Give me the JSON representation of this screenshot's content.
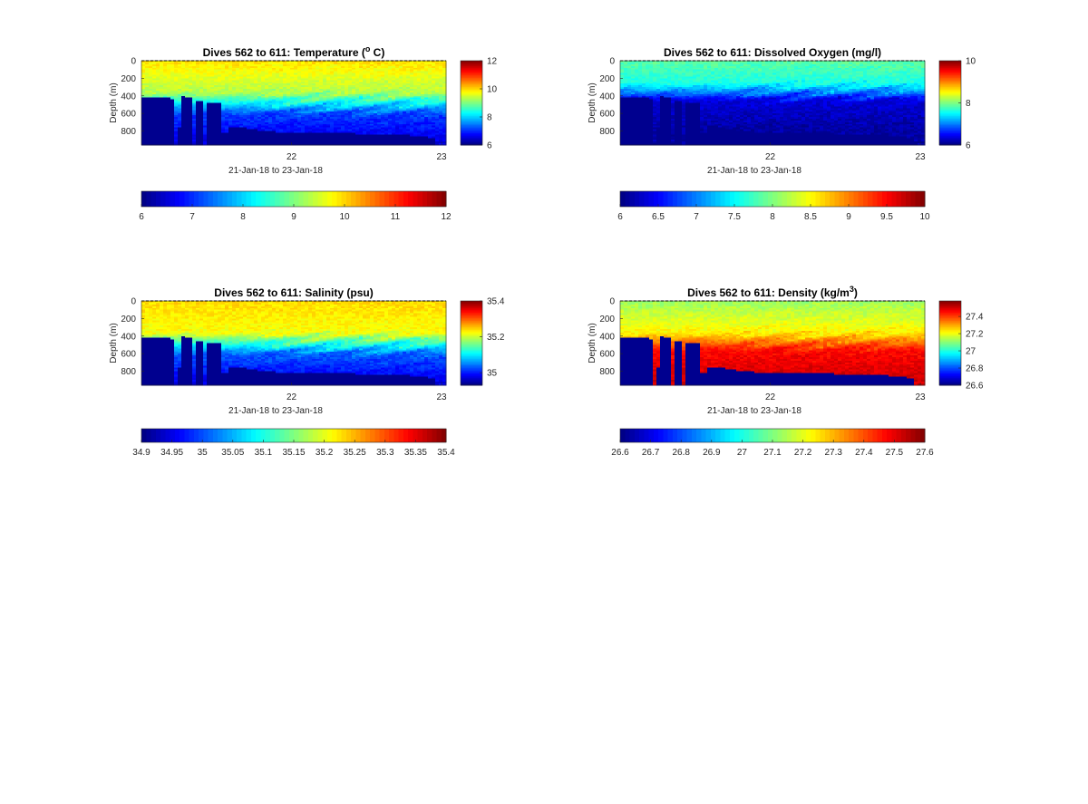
{
  "figure": {
    "background": "#ffffff",
    "colormap": "jet",
    "bathymetry_color": "#00008f"
  },
  "chart_data": [
    {
      "id": "temperature",
      "type": "heatmap",
      "title_text": "Dives 562 to 611: Temperature (",
      "title_sup": "o",
      "title_tail": " C)",
      "xlabel": "21-Jan-18 to 23-Jan-18",
      "ylabel": "Depth (m)",
      "x_ticks": [
        "22",
        "23"
      ],
      "x_tick_values": [
        22,
        23
      ],
      "xlim": [
        21.0,
        23.03
      ],
      "y_ticks": [
        "0",
        "200",
        "400",
        "600",
        "800"
      ],
      "y_tick_values": [
        0,
        200,
        400,
        600,
        800
      ],
      "ylim": [
        960,
        0
      ],
      "clim": [
        6,
        12
      ],
      "colorbar_side_ticks": [
        "6",
        "8",
        "10",
        "12"
      ],
      "colorbar_side_values": [
        6,
        8,
        10,
        12
      ],
      "colorbar_bottom_ticks": [
        "6",
        "7",
        "8",
        "9",
        "10",
        "11",
        "12"
      ],
      "colorbar_bottom_values": [
        6,
        7,
        8,
        9,
        10,
        11,
        12
      ],
      "profile": {
        "surface_value": 9.9,
        "mid_value": 9.3,
        "deep_value": 7.1,
        "bottom_value": 6.6,
        "thermocline_depth_m": [
          350,
          600
        ],
        "ramp_depth_m": 350
      }
    },
    {
      "id": "oxygen",
      "type": "heatmap",
      "title_text": "Dives 562 to 611: Dissolved Oxygen (mg/l)",
      "title_sup": "",
      "title_tail": "",
      "xlabel": "21-Jan-18 to 23-Jan-18",
      "ylabel": "Depth (m)",
      "x_ticks": [
        "22",
        "23"
      ],
      "x_tick_values": [
        22,
        23
      ],
      "xlim": [
        21.0,
        23.03
      ],
      "y_ticks": [
        "0",
        "200",
        "400",
        "600",
        "800"
      ],
      "y_tick_values": [
        0,
        200,
        400,
        600,
        800
      ],
      "ylim": [
        960,
        0
      ],
      "clim": [
        6,
        10
      ],
      "colorbar_side_ticks": [
        "6",
        "8",
        "10"
      ],
      "colorbar_side_values": [
        6,
        8,
        10
      ],
      "colorbar_bottom_ticks": [
        "6",
        "6.5",
        "7",
        "7.5",
        "8",
        "8.5",
        "9",
        "9.5",
        "10"
      ],
      "colorbar_bottom_values": [
        6,
        6.5,
        7,
        7.5,
        8,
        8.5,
        9,
        9.5,
        10
      ],
      "profile": {
        "surface_value": 7.85,
        "mid_value": 7.6,
        "deep_value": 6.35,
        "bottom_value": 6.15,
        "thermocline_depth_m": [
          250,
          450
        ],
        "ramp_depth_m": 250
      }
    },
    {
      "id": "salinity",
      "type": "heatmap",
      "title_text": "Dives 562 to 611: Salinity (psu)",
      "title_sup": "",
      "title_tail": "",
      "xlabel": "21-Jan-18 to 23-Jan-18",
      "ylabel": "Depth (m)",
      "x_ticks": [
        "22",
        "23"
      ],
      "x_tick_values": [
        22,
        23
      ],
      "xlim": [
        21.0,
        23.03
      ],
      "y_ticks": [
        "0",
        "200",
        "400",
        "600",
        "800"
      ],
      "y_tick_values": [
        0,
        200,
        400,
        600,
        800
      ],
      "ylim": [
        960,
        0
      ],
      "clim": [
        34.93,
        35.4
      ],
      "colorbar_side_ticks": [
        "35",
        "35.2",
        "35.4"
      ],
      "colorbar_side_values": [
        35,
        35.2,
        35.4
      ],
      "colorbar_bottom_ticks": [
        "34.9",
        "34.95",
        "35",
        "35.05",
        "35.1",
        "35.15",
        "35.2",
        "35.25",
        "35.3",
        "35.35",
        "35.4"
      ],
      "colorbar_bottom_values": [
        34.9,
        34.95,
        35,
        35.05,
        35.1,
        35.15,
        35.2,
        35.25,
        35.3,
        35.35,
        35.4
      ],
      "colorbar_bottom_clim": [
        34.9,
        35.4
      ],
      "profile": {
        "surface_value": 35.24,
        "mid_value": 35.22,
        "deep_value": 35.03,
        "bottom_value": 34.98,
        "thermocline_depth_m": [
          350,
          600
        ],
        "ramp_depth_m": 350
      }
    },
    {
      "id": "density",
      "type": "heatmap",
      "title_text": "Dives 562 to 611: Density (kg/m",
      "title_sup": "3",
      "title_tail": ")",
      "xlabel": "21-Jan-18 to 23-Jan-18",
      "ylabel": "Depth (m)",
      "x_ticks": [
        "22",
        "23"
      ],
      "x_tick_values": [
        22,
        23
      ],
      "xlim": [
        21.0,
        23.03
      ],
      "y_ticks": [
        "0",
        "200",
        "400",
        "600",
        "800"
      ],
      "y_tick_values": [
        0,
        200,
        400,
        600,
        800
      ],
      "ylim": [
        960,
        0
      ],
      "clim": [
        26.6,
        27.58
      ],
      "colorbar_side_ticks": [
        "26.6",
        "26.8",
        "27",
        "27.2",
        "27.4"
      ],
      "colorbar_side_values": [
        26.6,
        26.8,
        27,
        27.2,
        27.4
      ],
      "colorbar_bottom_ticks": [
        "26.6",
        "26.7",
        "26.8",
        "26.9",
        "27",
        "27.1",
        "27.2",
        "27.3",
        "27.4",
        "27.5",
        "27.6"
      ],
      "colorbar_bottom_values": [
        26.6,
        26.7,
        26.8,
        26.9,
        27,
        27.1,
        27.2,
        27.3,
        27.4,
        27.5,
        27.6
      ],
      "colorbar_bottom_clim": [
        26.6,
        27.6
      ],
      "profile": {
        "surface_value": 27.12,
        "mid_value": 27.22,
        "deep_value": 27.45,
        "bottom_value": 27.5,
        "thermocline_depth_m": [
          350,
          550
        ],
        "ramp_depth_m": 350
      }
    }
  ]
}
